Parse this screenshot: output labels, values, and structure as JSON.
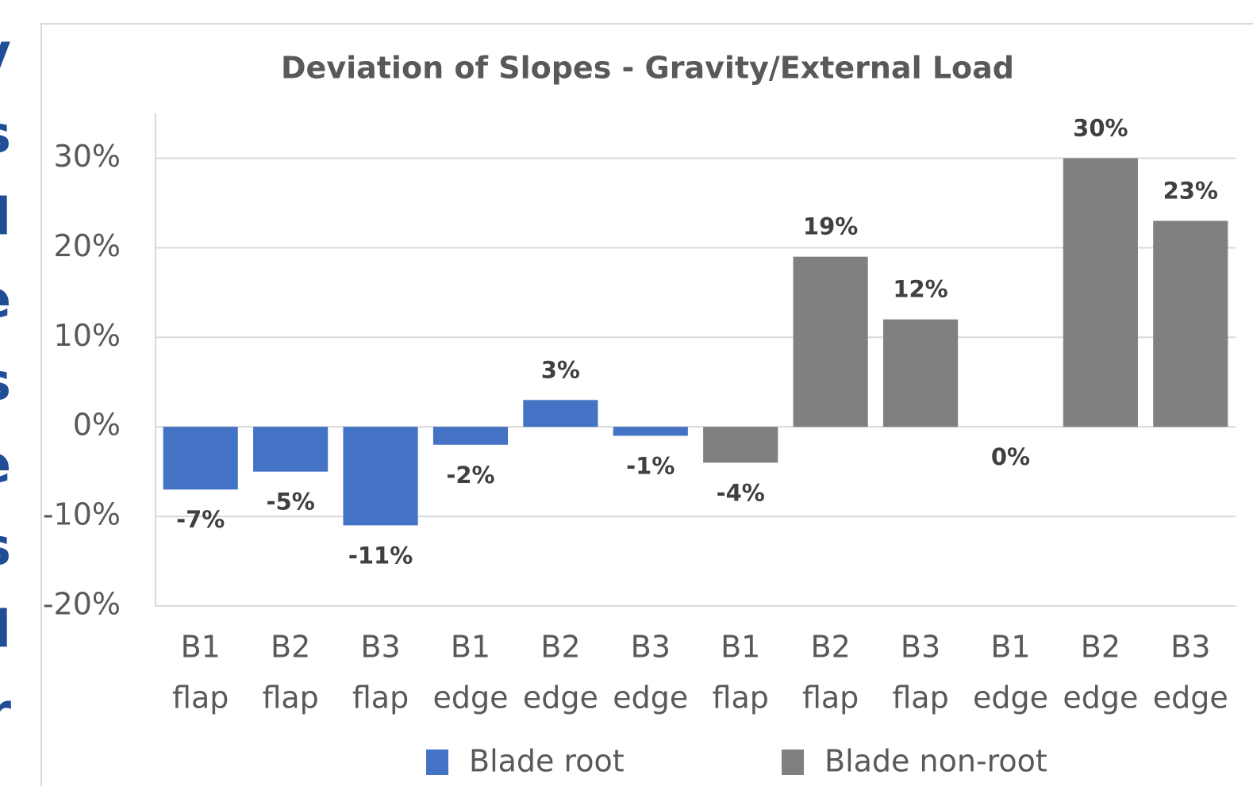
{
  "side_text": [
    "y",
    "s",
    "l",
    "e",
    "s",
    "e",
    "s",
    "l",
    "r"
  ],
  "chart_data": {
    "type": "bar",
    "title": "Deviation of Slopes - Gravity/External Load",
    "categories": [
      [
        "B1",
        "flap"
      ],
      [
        "B2",
        "flap"
      ],
      [
        "B3",
        "flap"
      ],
      [
        "B1",
        "edge"
      ],
      [
        "B2",
        "edge"
      ],
      [
        "B3",
        "edge"
      ],
      [
        "B1",
        "flap"
      ],
      [
        "B2",
        "flap"
      ],
      [
        "B3",
        "flap"
      ],
      [
        "B1",
        "edge"
      ],
      [
        "B2",
        "edge"
      ],
      [
        "B3",
        "edge"
      ]
    ],
    "series": [
      {
        "name": "Blade root",
        "color": "#4472c4",
        "values": [
          -7,
          -5,
          -11,
          -2,
          3,
          -1,
          null,
          null,
          null,
          null,
          null,
          null
        ],
        "value_labels": [
          "-7%",
          "-5%",
          "-11%",
          "-2%",
          "3%",
          "-1%",
          null,
          null,
          null,
          null,
          null,
          null
        ]
      },
      {
        "name": "Blade non-root",
        "color": "#808080",
        "values": [
          null,
          null,
          null,
          null,
          null,
          null,
          -4,
          19,
          12,
          0,
          30,
          23
        ],
        "value_labels": [
          null,
          null,
          null,
          null,
          null,
          null,
          "-4%",
          "19%",
          "12%",
          "0%",
          "30%",
          "23%"
        ]
      }
    ],
    "ylim": [
      -20,
      35
    ],
    "yticks": [
      {
        "value": -20,
        "label": "-20%"
      },
      {
        "value": -10,
        "label": "-10%"
      },
      {
        "value": 0,
        "label": "0%"
      },
      {
        "value": 10,
        "label": "10%"
      },
      {
        "value": 20,
        "label": "20%"
      },
      {
        "value": 30,
        "label": "30%"
      }
    ],
    "grid": true,
    "legend": "bottom"
  }
}
